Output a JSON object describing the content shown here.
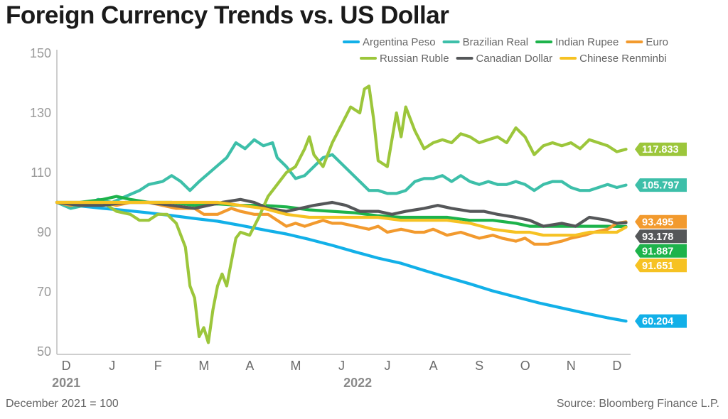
{
  "header": {
    "title": "Foreign Currency Trends vs. US Dollar"
  },
  "footer": {
    "note": "December 2021 = 100",
    "source": "Source: Bloomberg Finance L.P."
  },
  "chart_data": {
    "type": "line",
    "title": "Foreign Currency Trends vs. US Dollar",
    "xlabel": "",
    "ylabel": "",
    "ylim": [
      50,
      150
    ],
    "yticks": [
      "150",
      "130",
      "110",
      "90",
      "70",
      "50"
    ],
    "x_range": [
      0,
      12.5
    ],
    "xticks": [
      {
        "label": "D",
        "x": 0.25
      },
      {
        "label": "J",
        "x": 1.25
      },
      {
        "label": "F",
        "x": 2.25
      },
      {
        "label": "M",
        "x": 3.25
      },
      {
        "label": "A",
        "x": 4.25
      },
      {
        "label": "M",
        "x": 5.25
      },
      {
        "label": "J",
        "x": 6.25
      },
      {
        "label": "J",
        "x": 7.25
      },
      {
        "label": "A",
        "x": 8.25
      },
      {
        "label": "S",
        "x": 9.25
      },
      {
        "label": "O",
        "x": 10.25
      },
      {
        "label": "N",
        "x": 11.25
      },
      {
        "label": "D",
        "x": 12.25
      }
    ],
    "year_labels": [
      {
        "label": "2021",
        "x": 0.25
      },
      {
        "label": "2022",
        "x": 6.6
      }
    ],
    "legend_position": "top-right",
    "series": [
      {
        "name": "Argentina Peso",
        "color": "#12b0e8",
        "end_label": "60.204",
        "points": [
          [
            0,
            100
          ],
          [
            0.5,
            98.8
          ],
          [
            1,
            98
          ],
          [
            1.5,
            97.3
          ],
          [
            2,
            96.5
          ],
          [
            2.5,
            95.6
          ],
          [
            3,
            94.6
          ],
          [
            3.5,
            93.7
          ],
          [
            4,
            92.3
          ],
          [
            4.5,
            90.8
          ],
          [
            5,
            89.4
          ],
          [
            5.5,
            87.6
          ],
          [
            6,
            85.6
          ],
          [
            6.5,
            83.4
          ],
          [
            7,
            81.3
          ],
          [
            7.5,
            79.6
          ],
          [
            8,
            77.2
          ],
          [
            8.5,
            74.9
          ],
          [
            9,
            72.7
          ],
          [
            9.5,
            70.3
          ],
          [
            10,
            68.3
          ],
          [
            10.5,
            66.3
          ],
          [
            11,
            64.6
          ],
          [
            11.5,
            62.9
          ],
          [
            12,
            61.3
          ],
          [
            12.4,
            60.2
          ]
        ]
      },
      {
        "name": "Brazilian Real",
        "color": "#3dbfa9",
        "end_label": "105.797",
        "points": [
          [
            0,
            100
          ],
          [
            0.3,
            98
          ],
          [
            0.6,
            99
          ],
          [
            0.9,
            101
          ],
          [
            1.2,
            100
          ],
          [
            1.5,
            102
          ],
          [
            1.8,
            104
          ],
          [
            2,
            106
          ],
          [
            2.3,
            107
          ],
          [
            2.5,
            109
          ],
          [
            2.7,
            107
          ],
          [
            2.9,
            104
          ],
          [
            3.1,
            107
          ],
          [
            3.4,
            111
          ],
          [
            3.7,
            115
          ],
          [
            3.9,
            120
          ],
          [
            4.1,
            118
          ],
          [
            4.3,
            121
          ],
          [
            4.5,
            119
          ],
          [
            4.7,
            120
          ],
          [
            4.8,
            115
          ],
          [
            5,
            112
          ],
          [
            5.2,
            108
          ],
          [
            5.4,
            109
          ],
          [
            5.6,
            112
          ],
          [
            5.8,
            115
          ],
          [
            6,
            116
          ],
          [
            6.2,
            113
          ],
          [
            6.4,
            110
          ],
          [
            6.6,
            107
          ],
          [
            6.8,
            104
          ],
          [
            7,
            104
          ],
          [
            7.2,
            103
          ],
          [
            7.4,
            103
          ],
          [
            7.6,
            104
          ],
          [
            7.8,
            107
          ],
          [
            8,
            108
          ],
          [
            8.2,
            108
          ],
          [
            8.4,
            109
          ],
          [
            8.6,
            107
          ],
          [
            8.8,
            109
          ],
          [
            9,
            107
          ],
          [
            9.2,
            106
          ],
          [
            9.4,
            107
          ],
          [
            9.6,
            106
          ],
          [
            9.8,
            106
          ],
          [
            10,
            107
          ],
          [
            10.2,
            106
          ],
          [
            10.4,
            104
          ],
          [
            10.6,
            106
          ],
          [
            10.8,
            107
          ],
          [
            11,
            107
          ],
          [
            11.2,
            105
          ],
          [
            11.4,
            104
          ],
          [
            11.6,
            104
          ],
          [
            11.8,
            105
          ],
          [
            12,
            106
          ],
          [
            12.2,
            105
          ],
          [
            12.4,
            105.8
          ]
        ]
      },
      {
        "name": "Indian Rupee",
        "color": "#1db34b",
        "end_label": "91.887",
        "points": [
          [
            0,
            100
          ],
          [
            0.5,
            100
          ],
          [
            1,
            101
          ],
          [
            1.3,
            102
          ],
          [
            1.6,
            101
          ],
          [
            2,
            100
          ],
          [
            2.5,
            100
          ],
          [
            3,
            99
          ],
          [
            3.5,
            99.5
          ],
          [
            4,
            99
          ],
          [
            4.5,
            99
          ],
          [
            5,
            98.5
          ],
          [
            5.5,
            97.5
          ],
          [
            6,
            97
          ],
          [
            6.5,
            96.5
          ],
          [
            7,
            95.5
          ],
          [
            7.5,
            95
          ],
          [
            8,
            95
          ],
          [
            8.5,
            95
          ],
          [
            9,
            94
          ],
          [
            9.5,
            94
          ],
          [
            10,
            93
          ],
          [
            10.3,
            92
          ],
          [
            10.6,
            92
          ],
          [
            11,
            92
          ],
          [
            11.5,
            92
          ],
          [
            12,
            92
          ],
          [
            12.4,
            91.9
          ]
        ]
      },
      {
        "name": "Euro",
        "color": "#f29a2e",
        "end_label": "93.495",
        "points": [
          [
            0,
            100
          ],
          [
            0.3,
            99
          ],
          [
            0.6,
            100
          ],
          [
            1,
            100
          ],
          [
            1.3,
            99
          ],
          [
            1.6,
            100
          ],
          [
            2,
            100
          ],
          [
            2.3,
            99
          ],
          [
            2.6,
            98
          ],
          [
            3,
            98
          ],
          [
            3.2,
            96
          ],
          [
            3.5,
            96
          ],
          [
            3.8,
            98
          ],
          [
            4,
            97
          ],
          [
            4.3,
            96
          ],
          [
            4.6,
            96
          ],
          [
            4.8,
            94
          ],
          [
            5,
            92
          ],
          [
            5.2,
            93
          ],
          [
            5.4,
            92
          ],
          [
            5.6,
            93
          ],
          [
            5.8,
            94
          ],
          [
            6,
            93
          ],
          [
            6.2,
            93
          ],
          [
            6.5,
            92
          ],
          [
            6.8,
            91
          ],
          [
            7,
            92
          ],
          [
            7.2,
            90
          ],
          [
            7.5,
            91
          ],
          [
            7.8,
            90
          ],
          [
            8,
            90
          ],
          [
            8.2,
            91
          ],
          [
            8.5,
            89
          ],
          [
            8.8,
            90
          ],
          [
            9,
            89
          ],
          [
            9.2,
            88
          ],
          [
            9.5,
            89
          ],
          [
            9.7,
            88
          ],
          [
            10,
            87
          ],
          [
            10.2,
            88
          ],
          [
            10.4,
            86
          ],
          [
            10.7,
            86
          ],
          [
            11,
            87
          ],
          [
            11.2,
            88
          ],
          [
            11.5,
            89
          ],
          [
            11.7,
            90
          ],
          [
            12,
            91
          ],
          [
            12.2,
            93
          ],
          [
            12.4,
            93.5
          ]
        ]
      },
      {
        "name": "Russian Ruble",
        "color": "#9cc63b",
        "end_label": "117.833",
        "points": [
          [
            0,
            100
          ],
          [
            0.5,
            99
          ],
          [
            1,
            100
          ],
          [
            1.3,
            97
          ],
          [
            1.6,
            96
          ],
          [
            1.8,
            94
          ],
          [
            2,
            94
          ],
          [
            2.2,
            96
          ],
          [
            2.4,
            96
          ],
          [
            2.6,
            93
          ],
          [
            2.8,
            85
          ],
          [
            2.9,
            72
          ],
          [
            3,
            68
          ],
          [
            3.1,
            55
          ],
          [
            3.2,
            58
          ],
          [
            3.3,
            53
          ],
          [
            3.4,
            64
          ],
          [
            3.5,
            72
          ],
          [
            3.6,
            76
          ],
          [
            3.7,
            72
          ],
          [
            3.8,
            80
          ],
          [
            3.9,
            88
          ],
          [
            4,
            90
          ],
          [
            4.2,
            89
          ],
          [
            4.4,
            95
          ],
          [
            4.6,
            102
          ],
          [
            4.8,
            106
          ],
          [
            5,
            110
          ],
          [
            5.2,
            112
          ],
          [
            5.4,
            118
          ],
          [
            5.5,
            122
          ],
          [
            5.6,
            116
          ],
          [
            5.8,
            112
          ],
          [
            6,
            120
          ],
          [
            6.2,
            126
          ],
          [
            6.4,
            132
          ],
          [
            6.6,
            130
          ],
          [
            6.7,
            138
          ],
          [
            6.8,
            139
          ],
          [
            6.9,
            128
          ],
          [
            7,
            114
          ],
          [
            7.2,
            112
          ],
          [
            7.4,
            130
          ],
          [
            7.5,
            122
          ],
          [
            7.6,
            132
          ],
          [
            7.8,
            124
          ],
          [
            8,
            118
          ],
          [
            8.2,
            120
          ],
          [
            8.4,
            121
          ],
          [
            8.6,
            120
          ],
          [
            8.8,
            123
          ],
          [
            9,
            122
          ],
          [
            9.2,
            120
          ],
          [
            9.4,
            121
          ],
          [
            9.6,
            122
          ],
          [
            9.8,
            120
          ],
          [
            10,
            125
          ],
          [
            10.2,
            122
          ],
          [
            10.4,
            116
          ],
          [
            10.6,
            119
          ],
          [
            10.8,
            120
          ],
          [
            11,
            119
          ],
          [
            11.2,
            120
          ],
          [
            11.4,
            118
          ],
          [
            11.6,
            121
          ],
          [
            11.8,
            120
          ],
          [
            12,
            119
          ],
          [
            12.2,
            117
          ],
          [
            12.4,
            117.8
          ]
        ]
      },
      {
        "name": "Canadian Dollar",
        "color": "#555759",
        "end_label": "93.178",
        "points": [
          [
            0,
            100
          ],
          [
            0.5,
            99
          ],
          [
            1,
            99
          ],
          [
            1.5,
            100
          ],
          [
            2,
            100
          ],
          [
            2.5,
            99
          ],
          [
            3,
            98
          ],
          [
            3.3,
            99
          ],
          [
            3.6,
            100
          ],
          [
            4,
            101
          ],
          [
            4.3,
            100
          ],
          [
            4.6,
            98
          ],
          [
            5,
            97
          ],
          [
            5.3,
            98
          ],
          [
            5.6,
            99
          ],
          [
            6,
            100
          ],
          [
            6.3,
            99
          ],
          [
            6.6,
            97
          ],
          [
            7,
            97
          ],
          [
            7.3,
            96
          ],
          [
            7.6,
            97
          ],
          [
            8,
            98
          ],
          [
            8.3,
            99
          ],
          [
            8.6,
            98
          ],
          [
            9,
            97
          ],
          [
            9.3,
            97
          ],
          [
            9.6,
            96
          ],
          [
            10,
            95
          ],
          [
            10.3,
            94
          ],
          [
            10.6,
            92
          ],
          [
            11,
            93
          ],
          [
            11.3,
            92
          ],
          [
            11.6,
            95
          ],
          [
            12,
            94
          ],
          [
            12.2,
            93
          ],
          [
            12.4,
            93.2
          ]
        ]
      },
      {
        "name": "Chinese Renminbi",
        "color": "#f6c223",
        "end_label": "91.651",
        "points": [
          [
            0,
            100
          ],
          [
            0.5,
            100
          ],
          [
            1,
            100
          ],
          [
            1.5,
            100
          ],
          [
            2,
            100
          ],
          [
            2.5,
            100
          ],
          [
            3,
            100
          ],
          [
            3.5,
            100
          ],
          [
            4,
            99
          ],
          [
            4.5,
            98
          ],
          [
            5,
            96
          ],
          [
            5.5,
            95
          ],
          [
            6,
            95
          ],
          [
            6.5,
            95
          ],
          [
            7,
            95
          ],
          [
            7.5,
            94
          ],
          [
            8,
            94
          ],
          [
            8.5,
            94
          ],
          [
            9,
            93
          ],
          [
            9.5,
            91
          ],
          [
            10,
            90
          ],
          [
            10.3,
            90
          ],
          [
            10.6,
            89
          ],
          [
            11,
            89
          ],
          [
            11.3,
            89
          ],
          [
            11.6,
            90
          ],
          [
            12,
            90
          ],
          [
            12.2,
            90
          ],
          [
            12.4,
            91.7
          ]
        ]
      }
    ]
  }
}
